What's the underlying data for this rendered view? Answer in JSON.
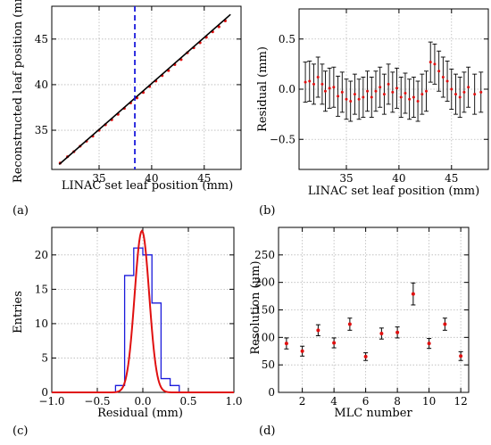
{
  "panel_labels": [
    "(a)",
    "(b)",
    "(c)",
    "(d)"
  ],
  "chart_data": [
    {
      "id": "a",
      "type": "scatter",
      "xlabel": "LINAC set leaf position (mm)",
      "ylabel": "Reconstructed leaf position (mm)",
      "xlim": [
        30.5,
        48.5
      ],
      "ylim": [
        30.7,
        48.6
      ],
      "xticks": [
        35,
        40,
        45
      ],
      "yticks": [
        35,
        40,
        45
      ],
      "grid": true,
      "fit_line": {
        "x": [
          31.2,
          47.5
        ],
        "y": [
          31.25,
          47.7
        ],
        "color": "#000000"
      },
      "vertical_line": {
        "x": 38.4,
        "color": "#1a1adb",
        "style": "dashed"
      },
      "points": {
        "color": "#e01010",
        "x": [
          31.3,
          32.0,
          32.6,
          33.2,
          33.8,
          34.4,
          35.0,
          35.6,
          36.2,
          36.8,
          37.4,
          38.0,
          38.6,
          39.2,
          39.8,
          40.4,
          41.0,
          41.6,
          42.2,
          42.8,
          43.4,
          44.0,
          44.6,
          45.2,
          45.8,
          46.4,
          47.0
        ],
        "y": [
          31.4,
          32.1,
          32.65,
          33.25,
          33.8,
          34.35,
          35.0,
          35.6,
          36.15,
          36.75,
          37.4,
          38.0,
          38.55,
          39.15,
          39.8,
          40.4,
          41.0,
          41.55,
          42.2,
          42.75,
          43.5,
          44.05,
          44.6,
          45.2,
          45.8,
          46.35,
          47.0
        ]
      }
    },
    {
      "id": "b",
      "type": "scatter",
      "xlabel": "LINAC set leaf position (mm)",
      "ylabel": "Residual (mm)",
      "xlim": [
        30.5,
        48.5
      ],
      "ylim": [
        -0.8,
        0.8
      ],
      "xticks": [
        35,
        40,
        45
      ],
      "yticks": [
        -0.5,
        0.0,
        0.5
      ],
      "ytick_labels": [
        "−0.5",
        "0.0",
        "0.5"
      ],
      "grid": true,
      "points": {
        "color": "#e01010",
        "errcolor": "#000000",
        "x": [
          31.1,
          31.5,
          31.9,
          32.3,
          32.7,
          33.0,
          33.4,
          33.8,
          34.2,
          34.6,
          35.0,
          35.4,
          35.8,
          36.2,
          36.6,
          37.0,
          37.4,
          37.8,
          38.2,
          38.6,
          39.0,
          39.4,
          39.8,
          40.2,
          40.6,
          41.0,
          41.4,
          41.8,
          42.2,
          42.6,
          43.0,
          43.4,
          43.8,
          44.2,
          44.6,
          45.0,
          45.4,
          45.8,
          46.2,
          46.6,
          47.2,
          47.8
        ],
        "y": [
          0.07,
          0.08,
          0.05,
          0.12,
          0.05,
          -0.02,
          0.01,
          0.02,
          -0.07,
          -0.03,
          -0.1,
          -0.12,
          -0.05,
          -0.1,
          -0.08,
          -0.02,
          -0.08,
          -0.02,
          0.02,
          -0.05,
          0.05,
          -0.03,
          0.01,
          -0.08,
          -0.04,
          -0.1,
          -0.08,
          -0.12,
          -0.05,
          -0.02,
          0.27,
          0.25,
          0.18,
          0.12,
          0.08,
          0.0,
          -0.05,
          -0.08,
          -0.03,
          0.02,
          -0.05,
          -0.03
        ],
        "err": [
          0.2,
          0.2,
          0.2,
          0.2,
          0.2,
          0.2,
          0.2,
          0.2,
          0.2,
          0.2,
          0.2,
          0.2,
          0.2,
          0.2,
          0.2,
          0.2,
          0.2,
          0.2,
          0.2,
          0.2,
          0.2,
          0.2,
          0.2,
          0.2,
          0.2,
          0.2,
          0.2,
          0.2,
          0.2,
          0.2,
          0.2,
          0.2,
          0.2,
          0.2,
          0.2,
          0.2,
          0.2,
          0.2,
          0.2,
          0.2,
          0.2,
          0.2
        ]
      }
    },
    {
      "id": "c",
      "type": "bar",
      "xlabel": "Residual (mm)",
      "ylabel": "Entries",
      "xlim": [
        -1.0,
        1.0
      ],
      "ylim": [
        0,
        24
      ],
      "xticks": [
        -1.0,
        -0.5,
        0.0,
        0.5,
        1.0
      ],
      "xtick_labels": [
        "−1.0",
        "−0.5",
        "0.0",
        "0.5",
        "1.0"
      ],
      "yticks": [
        0,
        5,
        10,
        15,
        20
      ],
      "grid": true,
      "histogram": {
        "color": "#1a1adb",
        "bin_edges": [
          -0.3,
          -0.2,
          -0.1,
          0.0,
          0.1,
          0.2,
          0.3,
          0.4
        ],
        "counts": [
          1,
          17,
          21,
          20,
          13,
          2,
          1
        ]
      },
      "gaussian_fit": {
        "color": "#e01010",
        "amplitude": 23.5,
        "mean": -0.01,
        "sigma": 0.08
      }
    },
    {
      "id": "d",
      "type": "scatter",
      "xlabel": "MLC number",
      "ylabel": "Resolution (μm)",
      "xlim": [
        0.5,
        12.5
      ],
      "ylim": [
        0,
        300
      ],
      "xticks": [
        2,
        4,
        6,
        8,
        10,
        12
      ],
      "yticks": [
        0,
        50,
        100,
        150,
        200,
        250
      ],
      "grid": true,
      "points": {
        "color": "#e01010",
        "errcolor": "#000000",
        "x": [
          1,
          2,
          3,
          4,
          5,
          6,
          7,
          8,
          9,
          10,
          11,
          12
        ],
        "y": [
          89,
          75,
          113,
          90,
          124,
          65,
          107,
          109,
          179,
          89,
          124,
          66
        ],
        "err": [
          10,
          9,
          10,
          9,
          11,
          7,
          10,
          10,
          20,
          9,
          11,
          8
        ]
      }
    }
  ]
}
